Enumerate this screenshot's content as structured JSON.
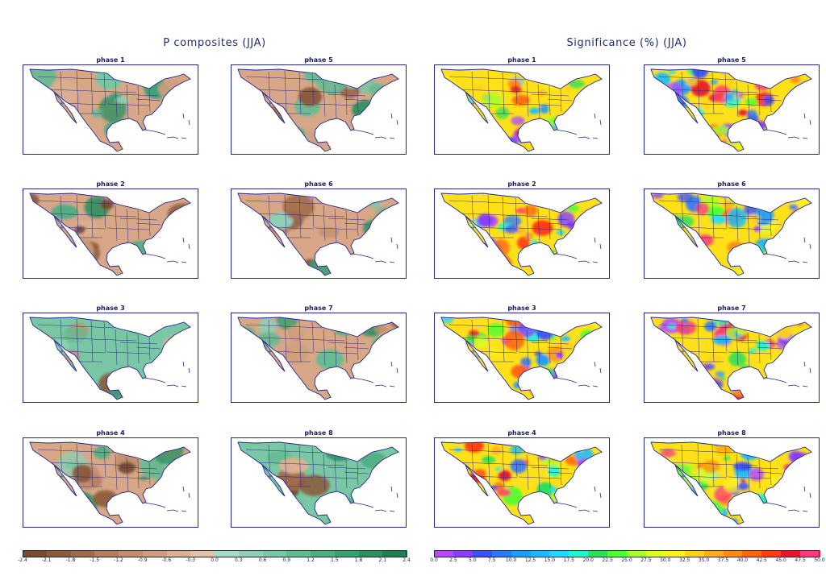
{
  "groups": [
    {
      "title": "P composites (JJA)",
      "kind": "composite",
      "panels": [
        {
          "title": "phase 1",
          "base": "#d7a787"
        },
        {
          "title": "phase 5",
          "base": "#d7a787"
        },
        {
          "title": "phase 2",
          "base": "#d7a787"
        },
        {
          "title": "phase 6",
          "base": "#d7a787"
        },
        {
          "title": "phase 3",
          "base": "#79c7a4"
        },
        {
          "title": "phase 7",
          "base": "#d7a787"
        },
        {
          "title": "phase 4",
          "base": "#d7a787"
        },
        {
          "title": "phase 8",
          "base": "#79c7a4"
        }
      ],
      "colorbar": {
        "colors": [
          "#7a4a2e",
          "#8c5a3c",
          "#a06a4a",
          "#b47d5c",
          "#c48e6d",
          "#d09e7f",
          "#dbb193",
          "#e3c2a7",
          "#a7dbc5",
          "#8fd0b5",
          "#79c7a4",
          "#63bb93",
          "#4eae82",
          "#3d9e72",
          "#2e8e62",
          "#217e54"
        ],
        "ticks": [
          "-2.4",
          "-2.1",
          "-1.8",
          "-1.5",
          "-1.2",
          "-0.9",
          "-0.6",
          "-0.3",
          "0.0",
          "0.3",
          "0.6",
          "0.9",
          "1.2",
          "1.5",
          "1.8",
          "2.1",
          "2.4"
        ]
      }
    },
    {
      "title": "Significance (%) (JJA)",
      "kind": "significance",
      "panels": [
        {
          "title": "phase 1",
          "base": "#ffe119"
        },
        {
          "title": "phase 5",
          "base": "#ffe119"
        },
        {
          "title": "phase 2",
          "base": "#ffe119"
        },
        {
          "title": "phase 6",
          "base": "#ffe119"
        },
        {
          "title": "phase 3",
          "base": "#ffe119"
        },
        {
          "title": "phase 7",
          "base": "#ffe119"
        },
        {
          "title": "phase 4",
          "base": "#ffe119"
        },
        {
          "title": "phase 8",
          "base": "#ffe119"
        }
      ],
      "colorbar": {
        "colors": [
          "#b24bff",
          "#8a3cff",
          "#3c50ff",
          "#2d78ff",
          "#1e9bff",
          "#16bcff",
          "#19dcff",
          "#1ef5d2",
          "#27e25a",
          "#50ff32",
          "#aaff28",
          "#ddff22",
          "#fff01e",
          "#ffd21a",
          "#ffb016",
          "#ff8c14",
          "#ff6412",
          "#ff3c14",
          "#e6142d",
          "#ff3c78"
        ],
        "ticks": [
          "0.0",
          "2.5",
          "5.0",
          "7.5",
          "10.0",
          "12.5",
          "15.0",
          "17.5",
          "20.0",
          "22.5",
          "25.0",
          "27.5",
          "30.0",
          "32.5",
          "35.0",
          "37.5",
          "40.0",
          "42.5",
          "45.0",
          "47.5",
          "50.0"
        ]
      }
    }
  ]
}
